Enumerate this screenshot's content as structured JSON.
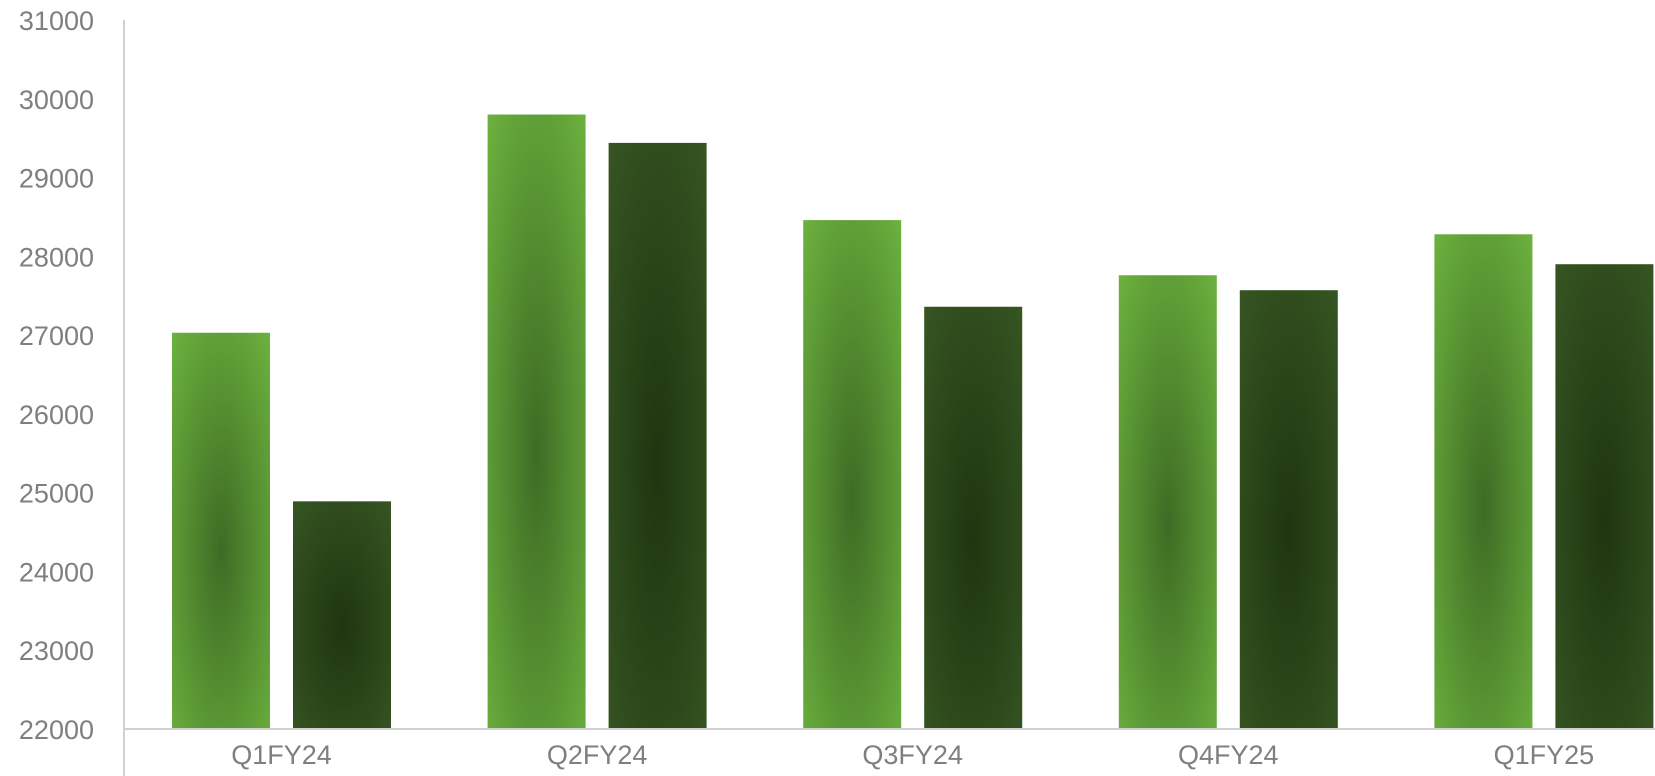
{
  "chart_data": {
    "type": "bar",
    "title": "",
    "xlabel": "",
    "ylabel": "",
    "categories": [
      "Q1FY24",
      "Q2FY24",
      "Q3FY24",
      "Q4FY24",
      "Q1FY25"
    ],
    "series": [
      {
        "values": [
          27030,
          29800,
          28460,
          27760,
          28280
        ],
        "color_top": "#6db33f",
        "color_center": "#3e6b24"
      },
      {
        "values": [
          24890,
          29440,
          27360,
          27570,
          27900
        ],
        "color_top": "#375623",
        "color_center": "#1f3510"
      }
    ],
    "ylim": [
      22000,
      31000
    ],
    "yticks": [
      22000,
      23000,
      24000,
      25000,
      26000,
      27000,
      28000,
      29000,
      30000,
      31000
    ],
    "grid": false,
    "legend": "none"
  }
}
